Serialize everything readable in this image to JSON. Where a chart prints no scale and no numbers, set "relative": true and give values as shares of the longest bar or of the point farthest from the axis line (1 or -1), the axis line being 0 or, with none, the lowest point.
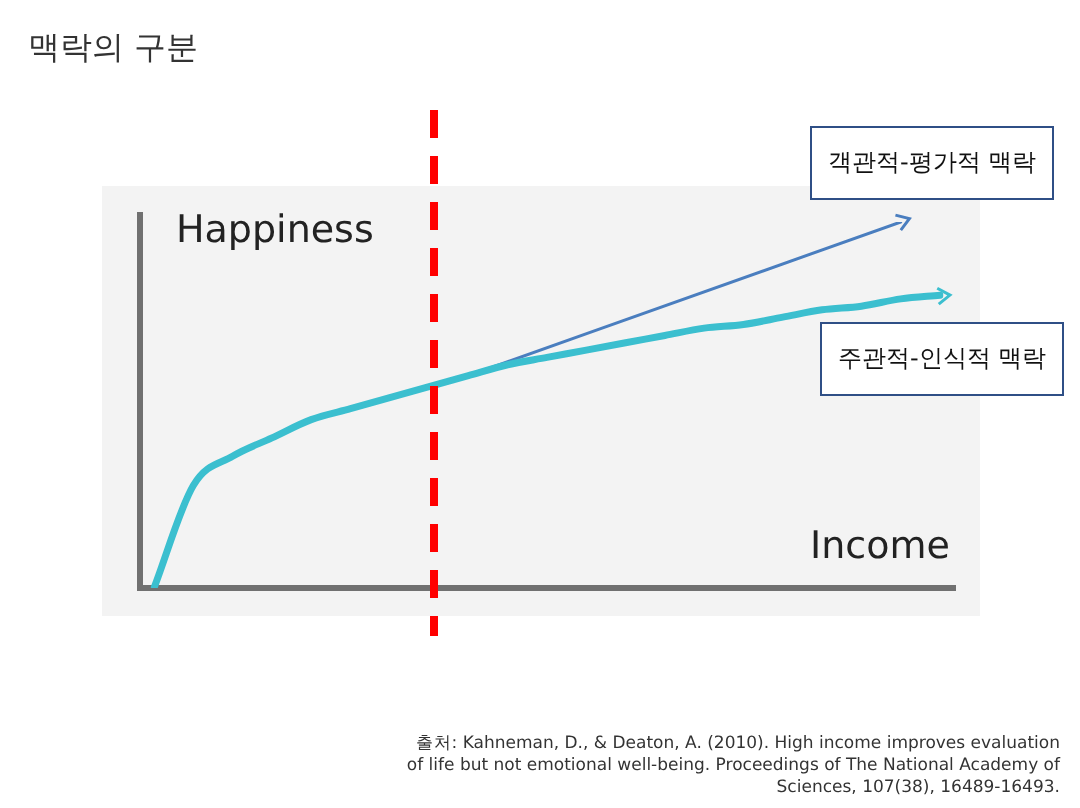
{
  "chart_data": {
    "type": "line",
    "title": "맥락의 구분",
    "xlabel": "Income",
    "ylabel": "Happiness",
    "relative": true,
    "legend": false,
    "grid": false,
    "categories": [
      null,
      null,
      null,
      null,
      null,
      null,
      null,
      null,
      null,
      null,
      null,
      null,
      null,
      null,
      null,
      null,
      null,
      null,
      null,
      null,
      null
    ],
    "series": [
      {
        "name": "주관적-인식적 맥락",
        "color": "#3bbfcf",
        "values": [
          0,
          0.28,
          0.36,
          0.41,
          0.46,
          0.49,
          0.52,
          0.55,
          0.58,
          0.61,
          0.63,
          0.65,
          0.67,
          0.69,
          0.71,
          0.72,
          0.74,
          0.76,
          0.77,
          0.79,
          0.8
        ]
      },
      {
        "name": "객관적-평가적 맥락",
        "color": "#4a7ebf",
        "values": [
          null,
          null,
          null,
          null,
          null,
          null,
          null,
          null,
          0.58,
          null,
          null,
          null,
          null,
          null,
          null,
          null,
          null,
          null,
          null,
          1,
          null
        ]
      }
    ],
    "annotations": [
      "출처: Kahneman, D., & Deaton, A. (2010). High income improves evaluation of life but not emotional well-being. Proceedings of The National Academy of Sciences, 107(38), 16489-16493."
    ]
  }
}
